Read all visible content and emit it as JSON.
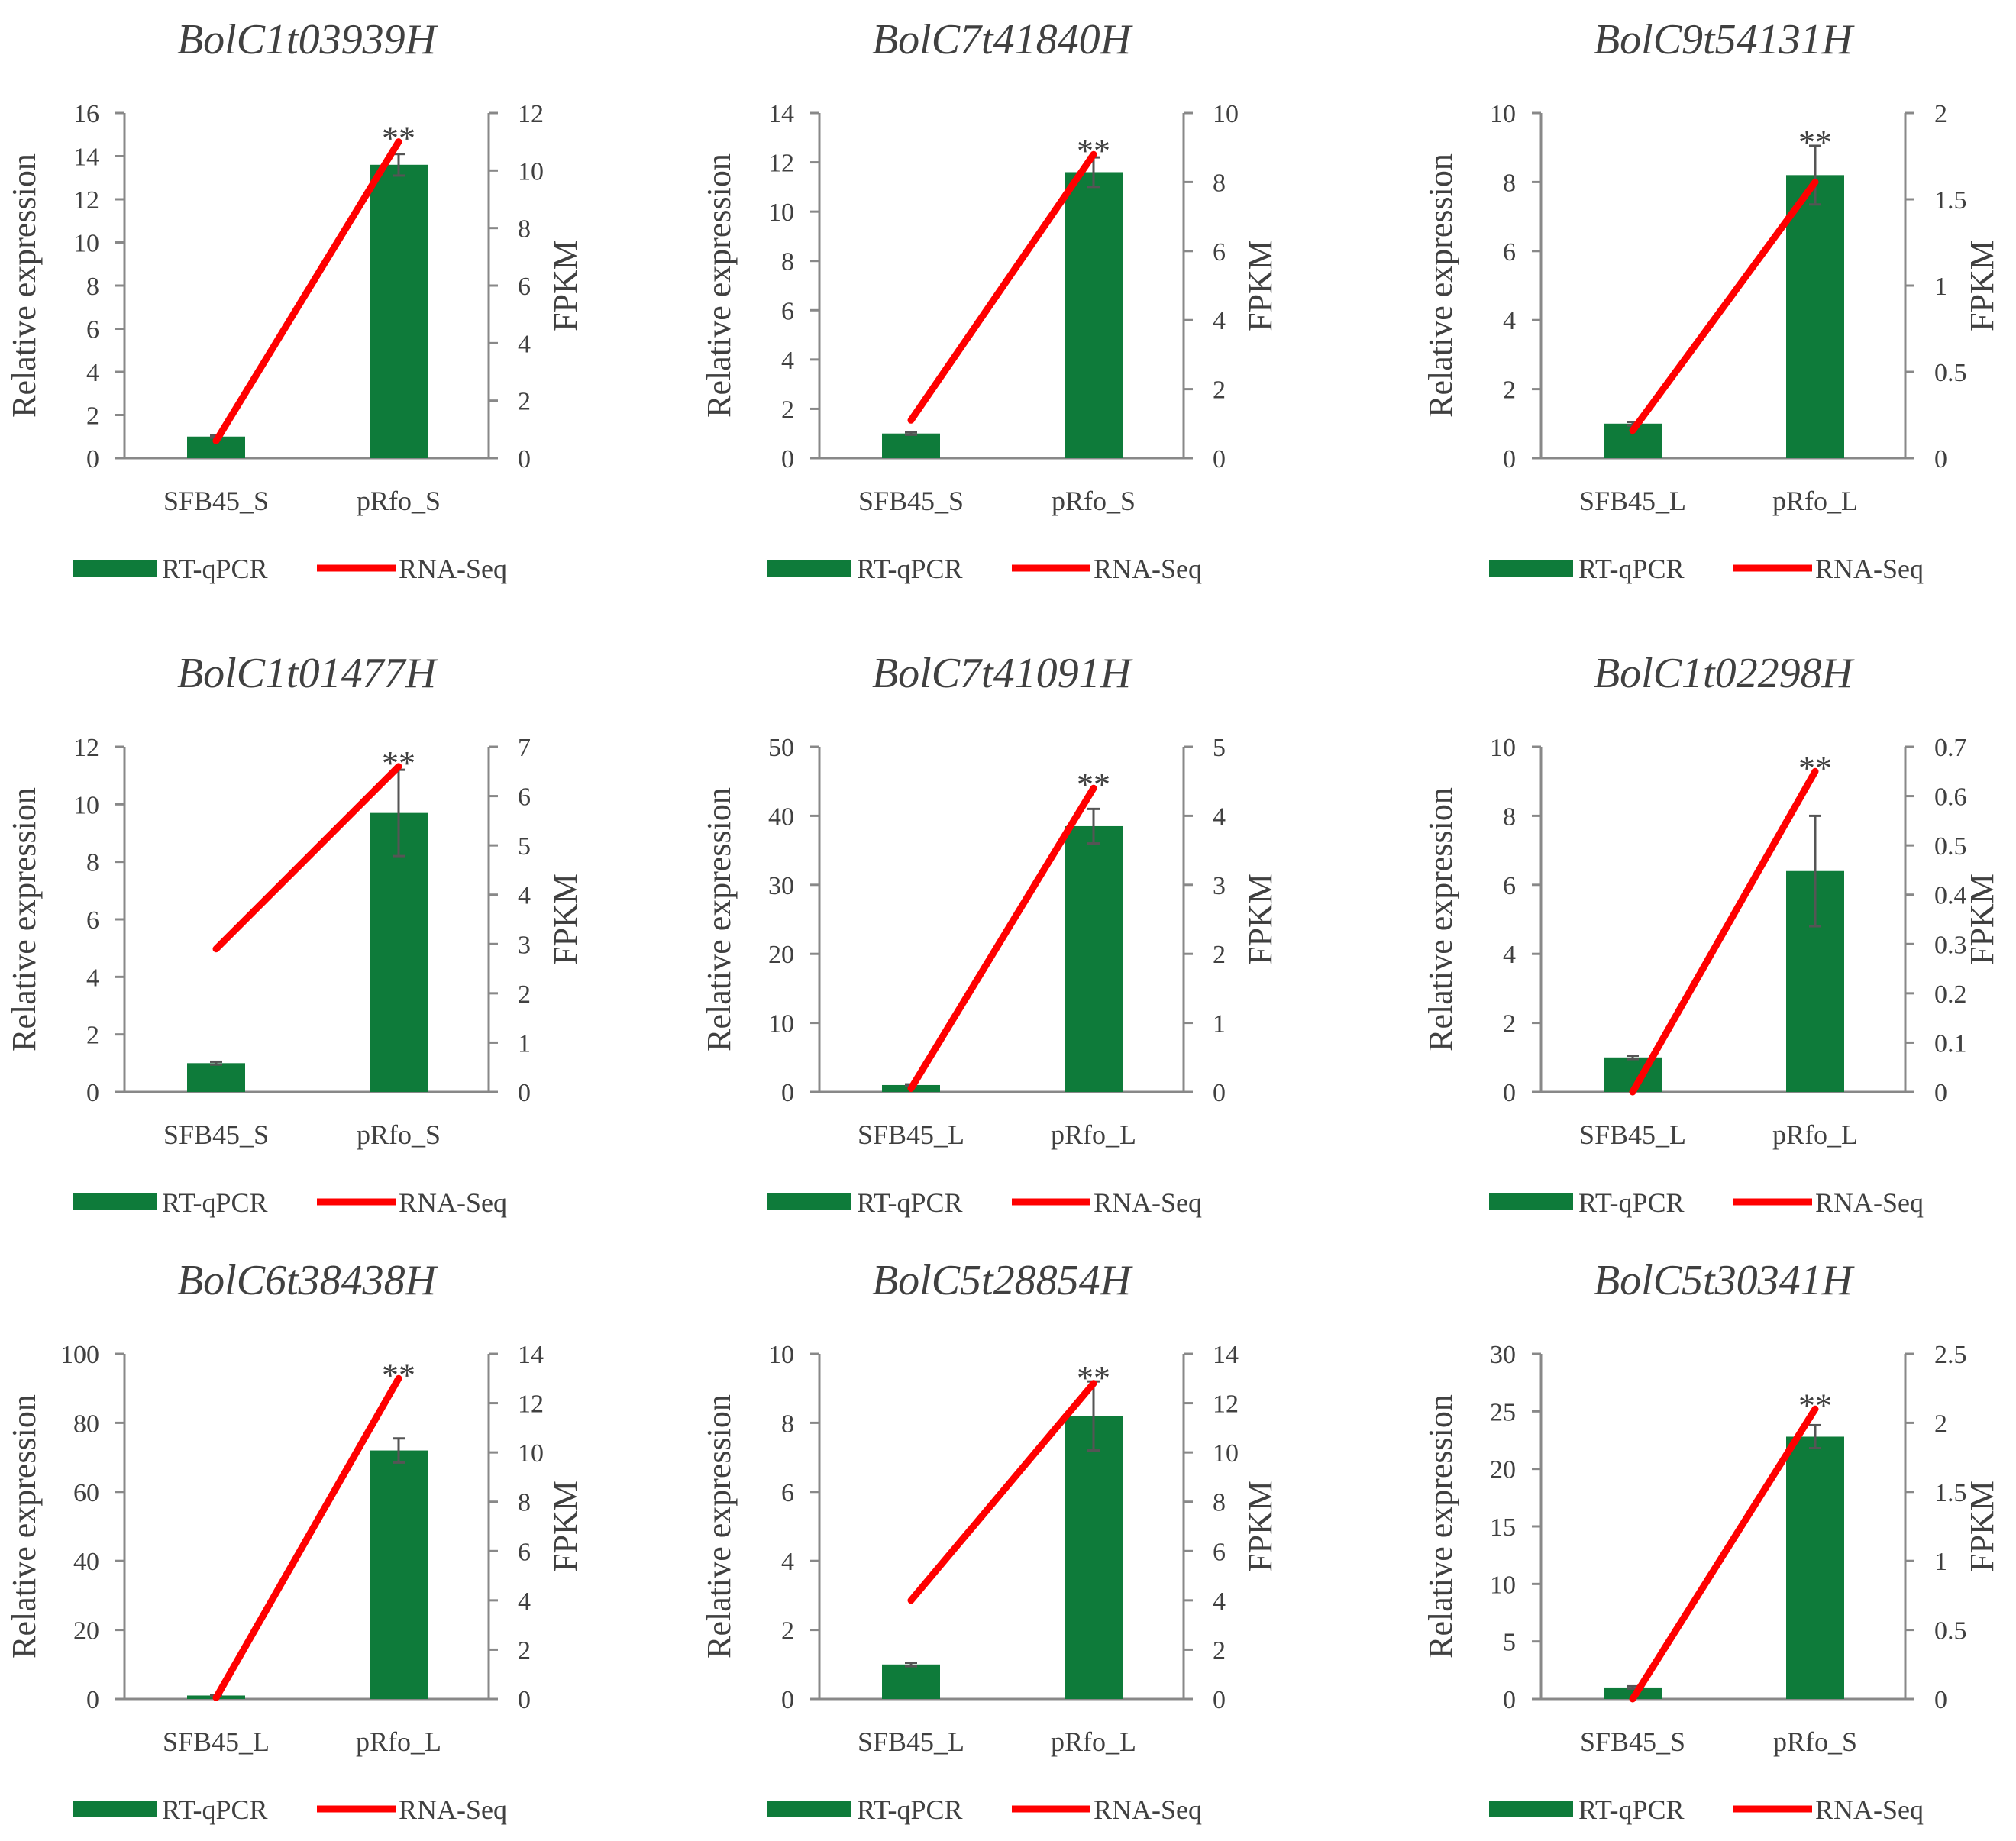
{
  "figure": {
    "legend_labels": {
      "bar": "RT-qPCR",
      "line": "RNA-Seq"
    },
    "colors": {
      "bar": "#0e7b3a",
      "line": "#ff0000",
      "error": "#555555",
      "axis": "#888888",
      "text": "#404040"
    }
  },
  "chart_data": [
    {
      "type": "bar+line",
      "title": "BolC1t03939H",
      "ylabel": "Relative expression",
      "y2label": "FPKM",
      "categories": [
        "SFB45_S",
        "pRfo_S"
      ],
      "ylim": [
        0,
        16
      ],
      "yticks": [
        0,
        2,
        4,
        6,
        8,
        10,
        12,
        14,
        16
      ],
      "y2lim": [
        0,
        12
      ],
      "y2ticks": [
        0,
        2,
        4,
        6,
        8,
        10,
        12
      ],
      "series": [
        {
          "name": "RT-qPCR",
          "axis": "left",
          "kind": "bar",
          "values": [
            1,
            13.6
          ],
          "errors": [
            0.05,
            0.5
          ]
        },
        {
          "name": "RNA-Seq",
          "axis": "right",
          "kind": "line",
          "values": [
            0.6,
            11.0
          ]
        }
      ],
      "significance": [
        "",
        "**"
      ]
    },
    {
      "type": "bar+line",
      "title": "BolC7t41840H",
      "ylabel": "Relative expression",
      "y2label": "FPKM",
      "categories": [
        "SFB45_S",
        "pRfo_S"
      ],
      "ylim": [
        0,
        14
      ],
      "yticks": [
        0,
        2,
        4,
        6,
        8,
        10,
        12,
        14
      ],
      "y2lim": [
        0,
        10
      ],
      "y2ticks": [
        0,
        2,
        4,
        6,
        8,
        10
      ],
      "series": [
        {
          "name": "RT-qPCR",
          "axis": "left",
          "kind": "bar",
          "values": [
            1,
            11.6
          ],
          "errors": [
            0.05,
            0.6
          ]
        },
        {
          "name": "RNA-Seq",
          "axis": "right",
          "kind": "line",
          "values": [
            1.1,
            8.8
          ]
        }
      ],
      "significance": [
        "",
        "**"
      ]
    },
    {
      "type": "bar+line",
      "title": "BolC9t54131H",
      "ylabel": "Relative expression",
      "y2label": "FPKM",
      "categories": [
        "SFB45_L",
        "pRfo_L"
      ],
      "ylim": [
        0,
        10
      ],
      "yticks": [
        0,
        2,
        4,
        6,
        8,
        10
      ],
      "y2lim": [
        0,
        2
      ],
      "y2ticks": [
        0,
        0.5,
        1,
        1.5,
        2
      ],
      "series": [
        {
          "name": "RT-qPCR",
          "axis": "left",
          "kind": "bar",
          "values": [
            1,
            8.2
          ],
          "errors": [
            0.05,
            0.85
          ]
        },
        {
          "name": "RNA-Seq",
          "axis": "right",
          "kind": "line",
          "values": [
            0.16,
            1.6
          ]
        }
      ],
      "significance": [
        "",
        "**"
      ]
    },
    {
      "type": "bar+line",
      "title": "BolC1t01477H",
      "ylabel": "Relative expression",
      "y2label": "FPKM",
      "categories": [
        "SFB45_S",
        "pRfo_S"
      ],
      "ylim": [
        0,
        12
      ],
      "yticks": [
        0,
        2,
        4,
        6,
        8,
        10,
        12
      ],
      "y2lim": [
        0,
        7
      ],
      "y2ticks": [
        0,
        1,
        2,
        3,
        4,
        5,
        6,
        7
      ],
      "series": [
        {
          "name": "RT-qPCR",
          "axis": "left",
          "kind": "bar",
          "values": [
            1,
            9.7
          ],
          "errors": [
            0.05,
            1.5
          ]
        },
        {
          "name": "RNA-Seq",
          "axis": "right",
          "kind": "line",
          "values": [
            2.9,
            6.6
          ]
        }
      ],
      "significance": [
        "",
        "**"
      ]
    },
    {
      "type": "bar+line",
      "title": "BolC7t41091H",
      "ylabel": "Relative expression",
      "y2label": "FPKM",
      "categories": [
        "SFB45_L",
        "pRfo_L"
      ],
      "ylim": [
        0,
        50
      ],
      "yticks": [
        0,
        10,
        20,
        30,
        40,
        50
      ],
      "y2lim": [
        0,
        5
      ],
      "y2ticks": [
        0,
        1,
        2,
        3,
        4,
        5
      ],
      "series": [
        {
          "name": "RT-qPCR",
          "axis": "left",
          "kind": "bar",
          "values": [
            1,
            38.5
          ],
          "errors": [
            0.1,
            2.5
          ]
        },
        {
          "name": "RNA-Seq",
          "axis": "right",
          "kind": "line",
          "values": [
            0.05,
            4.4
          ]
        }
      ],
      "significance": [
        "",
        "**"
      ]
    },
    {
      "type": "bar+line",
      "title": "BolC1t02298H",
      "ylabel": "Relative expression",
      "y2label": "FPKM",
      "categories": [
        "SFB45_L",
        "pRfo_L"
      ],
      "ylim": [
        0,
        10
      ],
      "yticks": [
        0,
        2,
        4,
        6,
        8,
        10
      ],
      "y2lim": [
        0,
        0.7
      ],
      "y2ticks": [
        0,
        0.1,
        0.2,
        0.3,
        0.4,
        0.5,
        0.6,
        0.7
      ],
      "series": [
        {
          "name": "RT-qPCR",
          "axis": "left",
          "kind": "bar",
          "values": [
            1,
            6.4
          ],
          "errors": [
            0.05,
            1.6
          ]
        },
        {
          "name": "RNA-Seq",
          "axis": "right",
          "kind": "line",
          "values": [
            0.0,
            0.65
          ]
        }
      ],
      "significance": [
        "",
        "**"
      ]
    },
    {
      "type": "bar+line",
      "title": "BolC6t38438H",
      "ylabel": "Relative expression",
      "y2label": "FPKM",
      "categories": [
        "SFB45_L",
        "pRfo_L"
      ],
      "ylim": [
        0,
        100
      ],
      "yticks": [
        0,
        20,
        40,
        60,
        80,
        100
      ],
      "y2lim": [
        0,
        14
      ],
      "y2ticks": [
        0,
        2,
        4,
        6,
        8,
        10,
        12,
        14
      ],
      "series": [
        {
          "name": "RT-qPCR",
          "axis": "left",
          "kind": "bar",
          "values": [
            1,
            72
          ],
          "errors": [
            0.1,
            3.5
          ]
        },
        {
          "name": "RNA-Seq",
          "axis": "right",
          "kind": "line",
          "values": [
            0.05,
            13.0
          ]
        }
      ],
      "significance": [
        "",
        "**"
      ]
    },
    {
      "type": "bar+line",
      "title": "BolC5t28854H",
      "ylabel": "Relative expression",
      "y2label": "FPKM",
      "categories": [
        "SFB45_L",
        "pRfo_L"
      ],
      "ylim": [
        0,
        10
      ],
      "yticks": [
        0,
        2,
        4,
        6,
        8,
        10
      ],
      "y2lim": [
        0,
        14
      ],
      "y2ticks": [
        0,
        2,
        4,
        6,
        8,
        10,
        12,
        14
      ],
      "series": [
        {
          "name": "RT-qPCR",
          "axis": "left",
          "kind": "bar",
          "values": [
            1,
            8.2
          ],
          "errors": [
            0.05,
            1.0
          ]
        },
        {
          "name": "RNA-Seq",
          "axis": "right",
          "kind": "line",
          "values": [
            4.0,
            12.8
          ]
        }
      ],
      "significance": [
        "",
        "**"
      ]
    },
    {
      "type": "bar+line",
      "title": "BolC5t30341H",
      "ylabel": "Relative expression",
      "y2label": "FPKM",
      "categories": [
        "SFB45_S",
        "pRfo_S"
      ],
      "ylim": [
        0,
        30
      ],
      "yticks": [
        0,
        5,
        10,
        15,
        20,
        25,
        30
      ],
      "y2lim": [
        0,
        2.5
      ],
      "y2ticks": [
        0,
        0.5,
        1,
        1.5,
        2,
        2.5
      ],
      "series": [
        {
          "name": "RT-qPCR",
          "axis": "left",
          "kind": "bar",
          "values": [
            1,
            22.8
          ],
          "errors": [
            0.1,
            1.0
          ]
        },
        {
          "name": "RNA-Seq",
          "axis": "right",
          "kind": "line",
          "values": [
            0.0,
            2.1
          ]
        }
      ],
      "significance": [
        "",
        "**"
      ]
    }
  ]
}
